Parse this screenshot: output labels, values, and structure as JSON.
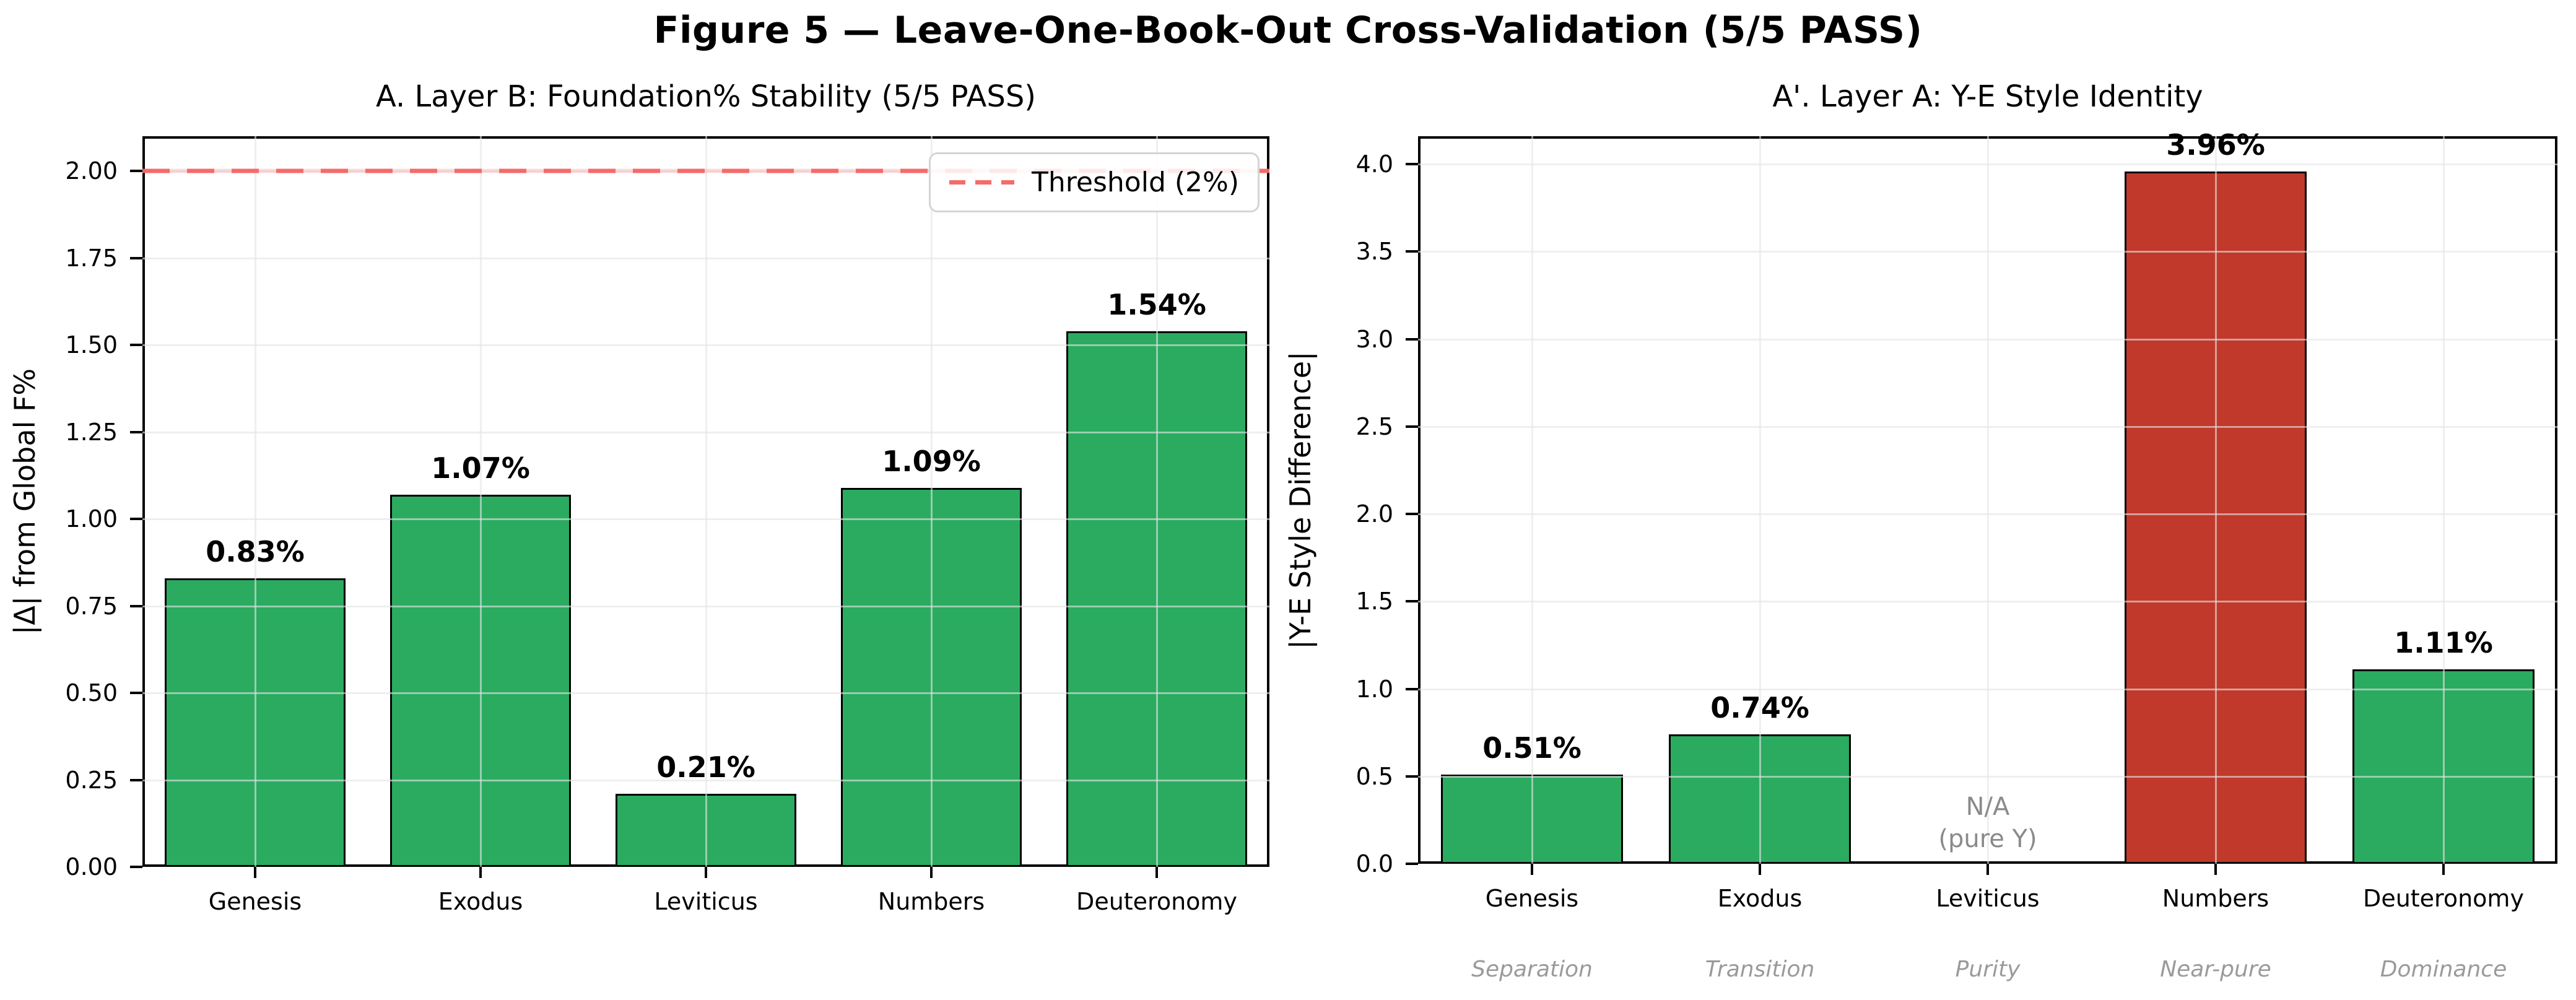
{
  "figure": {
    "title": "Figure 5 — Leave-One-Book-Out Cross-Validation (5/5 PASS)",
    "background": "#ffffff"
  },
  "colors": {
    "bar_green": "#2aab60",
    "bar_red": "#c0392b",
    "bar_edge": "#000000",
    "threshold_strong": "rgba(244,100,100,0.95)",
    "threshold_faint": "rgba(244,100,100,0.22)",
    "grid": "rgba(229,229,229,0.6)",
    "na_gray": "#8a8a8a",
    "annotation_gray": "#9a9a9a"
  },
  "chart_data": [
    {
      "type": "bar",
      "title": "A. Layer B: Foundation% Stability (5/5 PASS)",
      "ylabel": "|Δ| from Global F%",
      "xlabel": "",
      "categories": [
        "Genesis",
        "Exodus",
        "Leviticus",
        "Numbers",
        "Deuteronomy"
      ],
      "values": [
        0.83,
        1.07,
        0.21,
        1.09,
        1.54
      ],
      "bar_labels": [
        "0.83%",
        "1.07%",
        "0.21%",
        "1.09%",
        "1.54%"
      ],
      "bar_colors": [
        "#2aab60",
        "#2aab60",
        "#2aab60",
        "#2aab60",
        "#2aab60"
      ],
      "ytick_values": [
        0,
        0.25,
        0.5,
        0.75,
        1.0,
        1.25,
        1.5,
        1.75,
        2.0
      ],
      "ytick_labels": [
        "0.00",
        "0.25",
        "0.50",
        "0.75",
        "1.00",
        "1.25",
        "1.50",
        "1.75",
        "2.00"
      ],
      "ylim": [
        0,
        2.1
      ],
      "grid": true,
      "threshold": {
        "value": 2.0,
        "label": "Threshold (2%)"
      },
      "legend_position": "upper right"
    },
    {
      "type": "bar",
      "title": "A'. Layer A: Y-E Style Identity",
      "ylabel": "|Y-E Style Difference|",
      "xlabel": "",
      "categories": [
        "Genesis",
        "Exodus",
        "Leviticus",
        "Numbers",
        "Deuteronomy"
      ],
      "values": [
        0.51,
        0.74,
        null,
        3.96,
        1.11
      ],
      "bar_labels": [
        "0.51%",
        "0.74%",
        null,
        "3.96%",
        "1.11%"
      ],
      "bar_colors": [
        "#2aab60",
        "#2aab60",
        null,
        "#c0392b",
        "#2aab60"
      ],
      "na_label_line1": "N/A",
      "na_label_line2": "(pure Y)",
      "ytick_values": [
        0,
        0.5,
        1.0,
        1.5,
        2.0,
        2.5,
        3.0,
        3.5,
        4.0
      ],
      "ytick_labels": [
        "0.0",
        "0.5",
        "1.0",
        "1.5",
        "2.0",
        "2.5",
        "3.0",
        "3.5",
        "4.0"
      ],
      "ylim": [
        0,
        4.16
      ],
      "grid": true,
      "annotations": [
        "Separation",
        "Transition",
        "Purity",
        "Near-pure",
        "Dominance"
      ]
    }
  ]
}
